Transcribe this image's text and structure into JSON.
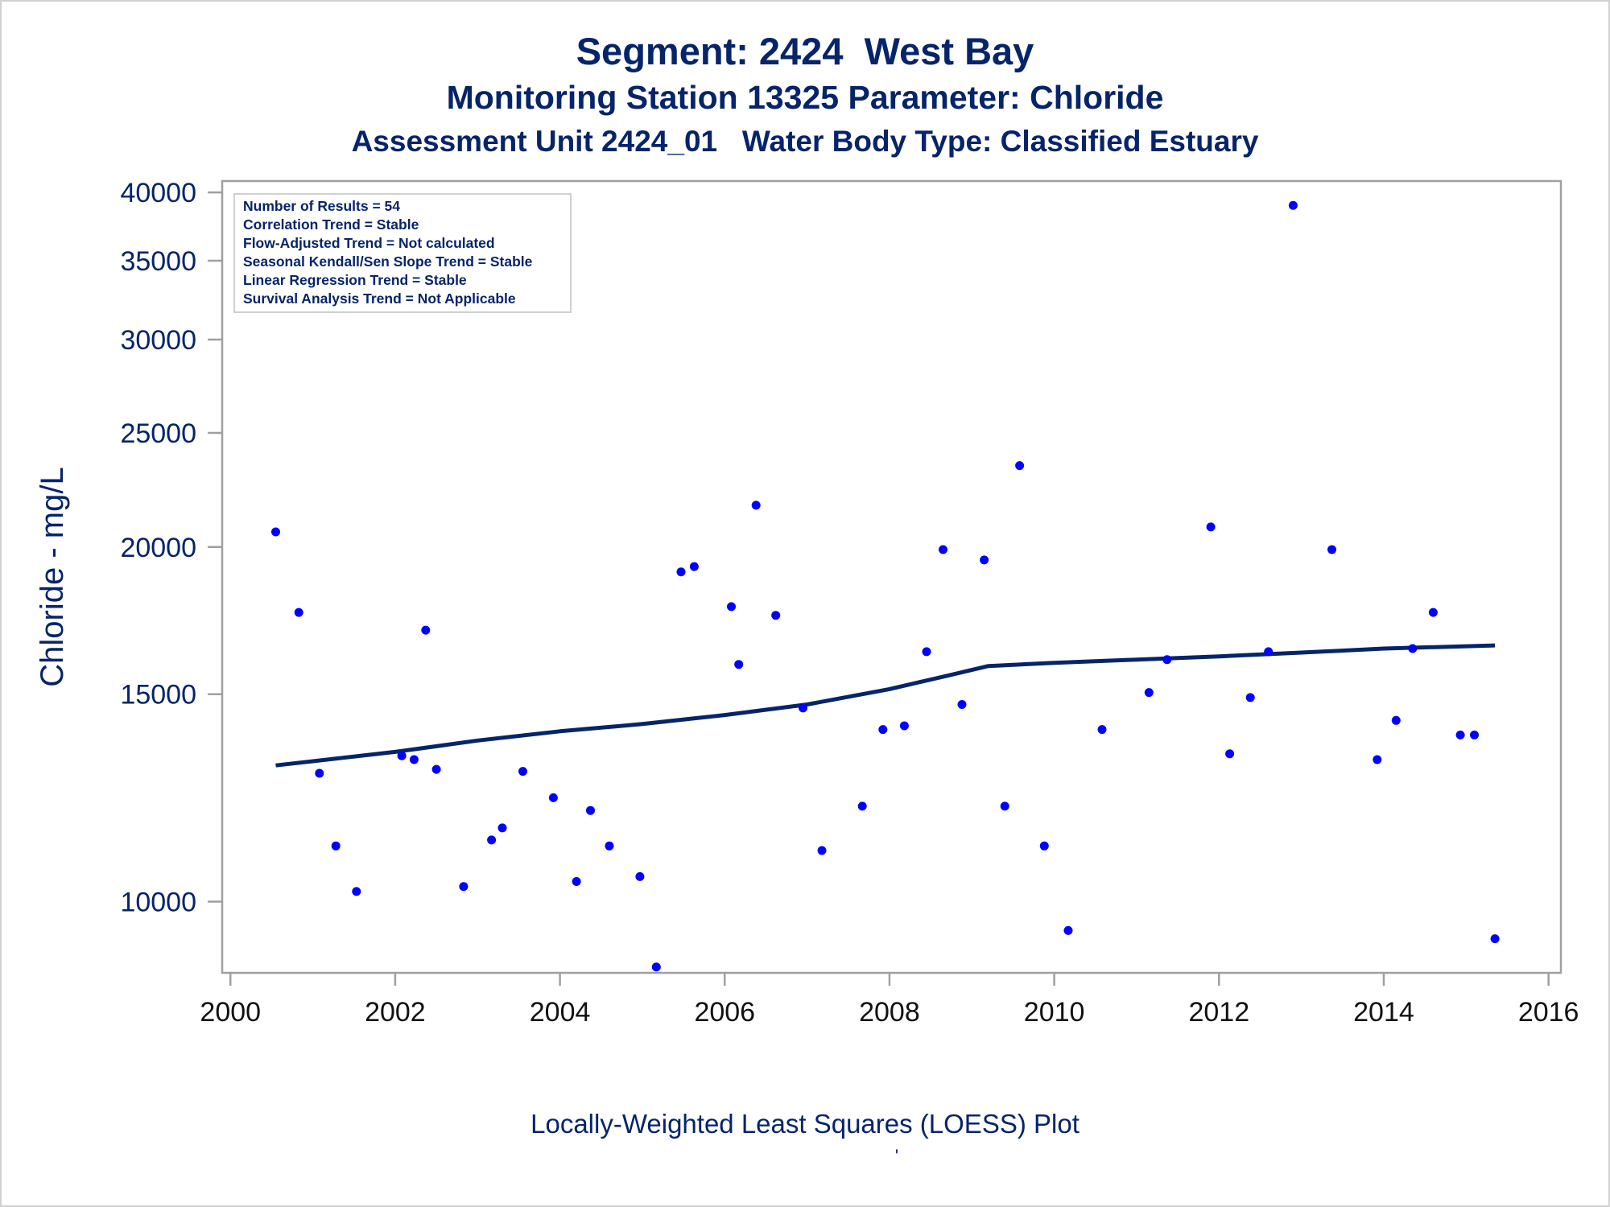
{
  "titles": {
    "line1": "Segment: 2424  West Bay",
    "line2": "Monitoring Station 13325 Parameter: Chloride",
    "line3": "Assessment Unit 2424_01   Water Body Type: Classified Estuary"
  },
  "footnote": "Locally-Weighted Least Squares (LOESS) Plot",
  "footnote_mark": "'",
  "stats": [
    "Number of Results = 54",
    "Correlation Trend = Stable",
    "Flow-Adjusted Trend = Not calculated",
    "Seasonal Kendall/Sen Slope Trend = Stable",
    "Linear Regression Trend = Stable",
    "Survival Analysis Trend = Not Applicable"
  ],
  "colors": {
    "points": "#0000ff",
    "loess": "#06246a",
    "text": "#06246a",
    "axis": "#a0a0a0"
  },
  "chart_data": {
    "type": "scatter",
    "title": "Segment: 2424  West Bay",
    "ylabel": "Chloride - mg/L",
    "xlabel": "",
    "yscale": "log",
    "xlim": [
      1999.9,
      2016.15
    ],
    "ylim": [
      8700,
      40900
    ],
    "xticks": [
      "2000",
      "2002",
      "2004",
      "2006",
      "2008",
      "2010",
      "2012",
      "2014",
      "2016"
    ],
    "yticks": [
      "10000",
      "15000",
      "20000",
      "25000",
      "30000",
      "35000",
      "40000"
    ],
    "legend": "top-left",
    "grid": false,
    "series": [
      {
        "type": "scatter",
        "points": [
          [
            2000.55,
            20600
          ],
          [
            2000.83,
            17600
          ],
          [
            2001.08,
            12850
          ],
          [
            2001.28,
            11150
          ],
          [
            2001.53,
            10200
          ],
          [
            2002.08,
            13300
          ],
          [
            2002.23,
            13200
          ],
          [
            2002.37,
            17000
          ],
          [
            2002.5,
            12950
          ],
          [
            2002.83,
            10300
          ],
          [
            2003.17,
            11280
          ],
          [
            2003.3,
            11550
          ],
          [
            2003.55,
            12900
          ],
          [
            2003.92,
            12250
          ],
          [
            2004.2,
            10400
          ],
          [
            2004.37,
            11950
          ],
          [
            2004.6,
            11150
          ],
          [
            2004.97,
            10500
          ],
          [
            2005.17,
            8800
          ],
          [
            2005.47,
            19050
          ],
          [
            2005.63,
            19250
          ],
          [
            2006.08,
            17800
          ],
          [
            2006.17,
            15900
          ],
          [
            2006.38,
            21700
          ],
          [
            2006.62,
            17500
          ],
          [
            2006.95,
            14600
          ],
          [
            2007.18,
            11050
          ],
          [
            2007.67,
            12050
          ],
          [
            2007.92,
            14000
          ],
          [
            2008.18,
            14100
          ],
          [
            2008.45,
            16300
          ],
          [
            2008.65,
            19900
          ],
          [
            2008.88,
            14700
          ],
          [
            2009.15,
            19500
          ],
          [
            2009.4,
            12050
          ],
          [
            2009.58,
            23450
          ],
          [
            2009.88,
            11150
          ],
          [
            2010.17,
            9450
          ],
          [
            2010.58,
            14000
          ],
          [
            2011.15,
            15050
          ],
          [
            2011.37,
            16050
          ],
          [
            2011.9,
            20800
          ],
          [
            2012.13,
            13350
          ],
          [
            2012.38,
            14900
          ],
          [
            2012.6,
            16300
          ],
          [
            2012.9,
            39000
          ],
          [
            2013.37,
            19900
          ],
          [
            2013.92,
            13200
          ],
          [
            2014.15,
            14250
          ],
          [
            2014.35,
            16400
          ],
          [
            2014.6,
            17600
          ],
          [
            2014.93,
            13850
          ],
          [
            2015.1,
            13850
          ],
          [
            2015.35,
            9300
          ]
        ]
      },
      {
        "type": "line",
        "name": "",
        "points": [
          [
            2000.55,
            13050
          ],
          [
            2002.0,
            13400
          ],
          [
            2003.0,
            13700
          ],
          [
            2004.0,
            13950
          ],
          [
            2005.0,
            14150
          ],
          [
            2006.0,
            14400
          ],
          [
            2007.0,
            14700
          ],
          [
            2008.0,
            15150
          ],
          [
            2008.7,
            15550
          ],
          [
            2009.2,
            15850
          ],
          [
            2010.0,
            15950
          ],
          [
            2011.0,
            16050
          ],
          [
            2012.0,
            16150
          ],
          [
            2013.0,
            16270
          ],
          [
            2014.0,
            16400
          ],
          [
            2015.35,
            16500
          ]
        ]
      }
    ]
  }
}
